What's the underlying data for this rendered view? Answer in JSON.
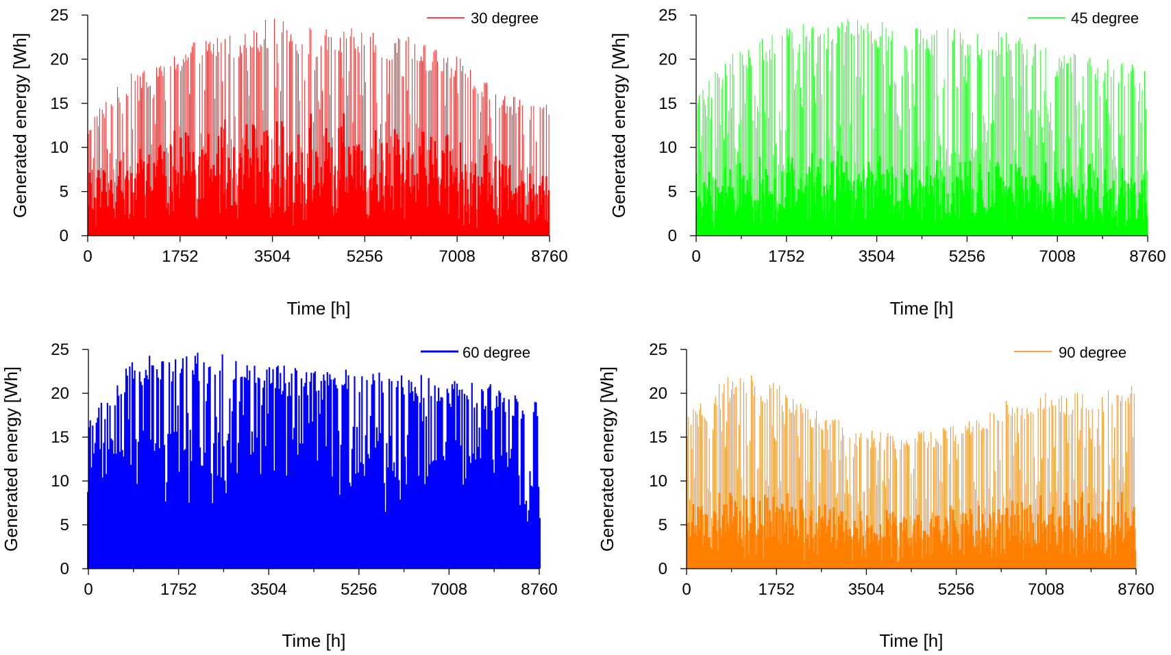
{
  "chart_data": [
    {
      "type": "bar",
      "xlabel": "Time [h]",
      "ylabel": "Generated energy [Wh]",
      "xlim": [
        0,
        8760
      ],
      "ylim": [
        0,
        25
      ],
      "xticks": [
        "0",
        "1752",
        "3504",
        "5256",
        "7008",
        "8760"
      ],
      "yticks": [
        "0",
        "5",
        "10",
        "15",
        "20",
        "25"
      ],
      "legend": "top-right",
      "grid": false,
      "series": [
        {
          "name": "30 degree",
          "color": "#ff0000"
        }
      ],
      "envelope": {
        "hours": [
          0,
          876,
          1752,
          2628,
          3504,
          4380,
          5256,
          6132,
          7008,
          7884,
          8760
        ],
        "daily_peak_wh": [
          13,
          19,
          21.5,
          23.5,
          24.7,
          23.5,
          23.5,
          22.5,
          20.5,
          16,
          15
        ]
      }
    },
    {
      "type": "bar",
      "xlabel": "Time [h]",
      "ylabel": "Generated energy [Wh]",
      "xlim": [
        0,
        8760
      ],
      "ylim": [
        0,
        25
      ],
      "xticks": [
        "0",
        "1752",
        "3504",
        "5256",
        "7008",
        "8760"
      ],
      "yticks": [
        "0",
        "5",
        "10",
        "15",
        "20",
        "25"
      ],
      "legend": "top-right",
      "grid": false,
      "series": [
        {
          "name": "45 degree",
          "color": "#00ff00"
        }
      ],
      "envelope": {
        "hours": [
          0,
          876,
          1752,
          2628,
          3504,
          4380,
          5256,
          6132,
          7008,
          7884,
          8760
        ],
        "daily_peak_wh": [
          16,
          22,
          23.5,
          25,
          24.5,
          23.5,
          23.5,
          23,
          21,
          20.5,
          19
        ]
      }
    },
    {
      "type": "bar",
      "xlabel": "Time [h]",
      "ylabel": "Generated energy [Wh]",
      "xlim": [
        0,
        8760
      ],
      "ylim": [
        0,
        25
      ],
      "xticks": [
        "0",
        "1752",
        "3504",
        "5256",
        "7008",
        "8760"
      ],
      "yticks": [
        "0",
        "5",
        "10",
        "15",
        "20",
        "25"
      ],
      "legend": "top-right",
      "grid": false,
      "series": [
        {
          "name": "60 degree",
          "color": "#0000ff"
        }
      ],
      "envelope": {
        "hours": [
          0,
          876,
          1752,
          2628,
          3504,
          4380,
          5256,
          6132,
          7008,
          7884,
          8760
        ],
        "daily_peak_wh": [
          17.5,
          24,
          25,
          24.5,
          23.5,
          22.5,
          23,
          22.5,
          21.5,
          21,
          19.5
        ]
      }
    },
    {
      "type": "bar",
      "xlabel": "Time [h]",
      "ylabel": "Generated energy [Wh]",
      "xlim": [
        0,
        8760
      ],
      "ylim": [
        0,
        25
      ],
      "xticks": [
        "0",
        "1752",
        "3504",
        "5256",
        "7008",
        "8760"
      ],
      "yticks": [
        "0",
        "5",
        "10",
        "15",
        "20",
        "25"
      ],
      "legend": "top-right",
      "grid": false,
      "series": [
        {
          "name": "90 degree",
          "color": "#ff8000"
        }
      ],
      "envelope": {
        "hours": [
          0,
          876,
          1752,
          2628,
          3504,
          4380,
          5256,
          6132,
          7008,
          7884,
          8760
        ],
        "daily_peak_wh": [
          17.5,
          22.5,
          21.5,
          18,
          16,
          15.5,
          16.5,
          19,
          20.5,
          20.5,
          21
        ]
      }
    }
  ]
}
